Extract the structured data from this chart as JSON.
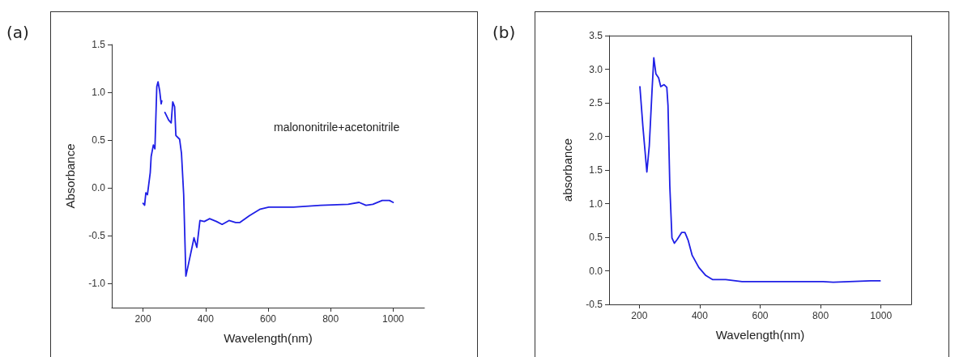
{
  "chart_data": [
    {
      "type": "line",
      "xlabel": "Wavelength(nm)",
      "ylabel": "Absorbance",
      "annotations": [
        "(a)",
        "malononitrile+acetonitrile"
      ],
      "xlim": [
        100,
        1100
      ],
      "xticks": [
        200,
        400,
        600,
        800,
        1000
      ],
      "ylim": [
        -1.25,
        1.5
      ],
      "yticks": [
        {
          "value": -1,
          "label": "-1.0"
        },
        -0.5,
        {
          "value": 0,
          "label": "0.0"
        },
        0.5,
        {
          "value": 1,
          "label": "1.0"
        },
        1.5
      ],
      "grid": false,
      "marker": "none",
      "line_style": "solid",
      "series": [
        {
          "color": "#1f1fe6",
          "x": [
            200,
            205,
            209,
            214,
            218,
            223,
            226,
            233,
            238,
            244,
            248,
            253,
            258,
            260,
            265,
            270,
            282,
            290,
            295,
            301,
            305,
            317,
            323,
            330,
            337,
            343,
            356,
            363,
            372,
            382,
            396,
            413,
            435,
            453,
            475,
            496,
            510,
            540,
            575,
            602,
            681,
            768,
            856,
            891,
            913,
            935,
            965,
            988,
            1000
          ],
          "values": [
            -0.16,
            -0.18,
            -0.05,
            -0.07,
            0.03,
            0.16,
            0.33,
            0.45,
            0.41,
            1.06,
            1.11,
            1.02,
            0.88,
            0.91,
            null,
            0.79,
            0.71,
            0.68,
            0.9,
            0.85,
            0.55,
            0.51,
            0.36,
            -0.07,
            -0.92,
            -0.83,
            -0.63,
            -0.52,
            -0.62,
            -0.34,
            -0.35,
            -0.32,
            -0.35,
            -0.38,
            -0.34,
            -0.36,
            -0.36,
            -0.29,
            -0.22,
            -0.2,
            -0.2,
            -0.18,
            -0.17,
            -0.15,
            -0.18,
            -0.17,
            -0.13,
            -0.13,
            -0.15
          ]
        }
      ]
    },
    {
      "type": "line",
      "xlabel": "Wavelength(nm)",
      "ylabel": "absorbance",
      "annotations": [
        "(b)"
      ],
      "xlim": [
        100,
        1100
      ],
      "xticks": [
        200,
        400,
        600,
        800,
        1000
      ],
      "ylim": [
        -0.5,
        3.5
      ],
      "yticks": [
        -0.5,
        {
          "value": 0,
          "label": "0.0"
        },
        0.5,
        {
          "value": 1,
          "label": "1.0"
        },
        1.5,
        {
          "value": 2,
          "label": "2.0"
        },
        2.5,
        {
          "value": 3,
          "label": "3.0"
        },
        3.5
      ],
      "grid": false,
      "marker": "none",
      "line_style": "solid",
      "series": [
        {
          "color": "#1f1fe6",
          "x": [
            202,
            212,
            225,
            233,
            242,
            248,
            255,
            264,
            271,
            282,
            291,
            295,
            301,
            308,
            316,
            326,
            340,
            351,
            362,
            375,
            397,
            420,
            442,
            486,
            540,
            620,
            717,
            806,
            842,
            895,
            966,
            997
          ],
          "values": [
            2.74,
            2.14,
            1.47,
            1.86,
            2.67,
            3.17,
            2.93,
            2.87,
            2.74,
            2.77,
            2.73,
            2.46,
            1.26,
            0.49,
            0.41,
            0.47,
            0.57,
            0.57,
            0.45,
            0.23,
            0.05,
            -0.07,
            -0.13,
            -0.13,
            -0.16,
            -0.16,
            -0.16,
            -0.16,
            -0.17,
            -0.16,
            -0.15,
            -0.15
          ]
        }
      ]
    }
  ]
}
